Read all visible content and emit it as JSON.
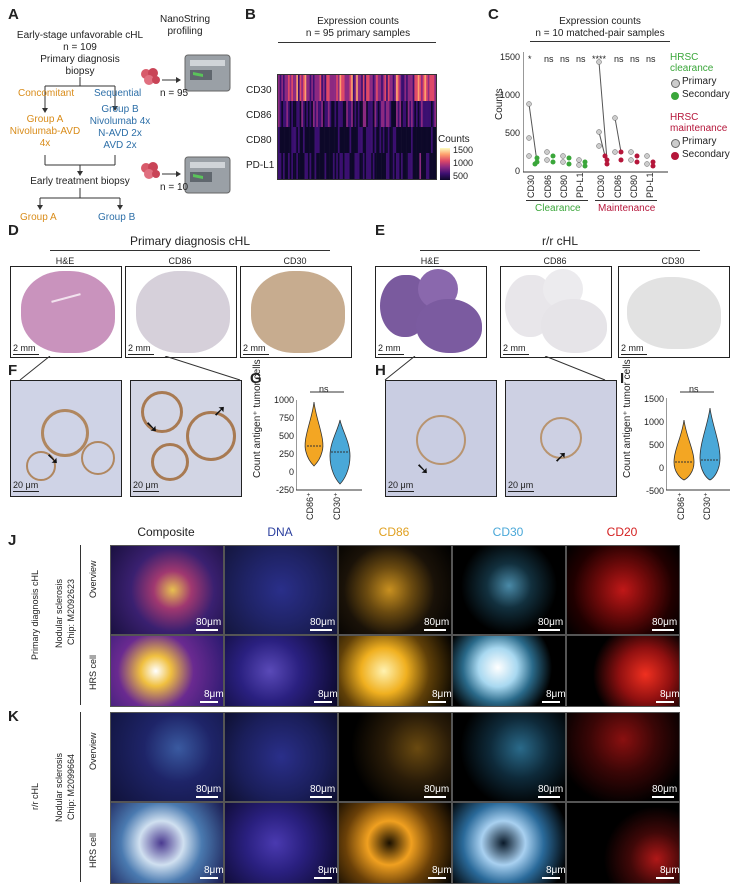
{
  "panel_letters": {
    "a": "A",
    "b": "B",
    "c": "C",
    "d": "D",
    "e": "E",
    "f": "F",
    "g": "G",
    "h": "H",
    "i": "I",
    "j": "J",
    "k": "K"
  },
  "panelA": {
    "nanostring": "NanoString",
    "profiling": "profiling",
    "cohort_title": "Early-stage unfavorable cHL",
    "cohort_n": "n = 109",
    "biopsy_line1": "Primary diagnosis",
    "biopsy_line2": "biopsy",
    "n95": "n = 95",
    "concomitant": "Concomitant",
    "sequential": "Sequential",
    "groupA_title": "Group A",
    "groupA_line1": "Nivolumab-AVD",
    "groupA_line2": "4x",
    "groupB_title": "Group B",
    "groupB_line1": "Nivolumab 4x",
    "groupB_line2": "N-AVD 2x",
    "groupB_line3": "AVD 2x",
    "early_biopsy": "Early treatment biopsy",
    "n10": "n = 10",
    "bottom_groupA": "Group A",
    "bottom_groupB": "Group B",
    "colors": {
      "groupA": "#d98c1a",
      "groupB": "#2d6fa8"
    }
  },
  "panelB": {
    "title1": "Expression counts",
    "title2": "n = 95 primary samples",
    "rows": [
      "CD30",
      "CD86",
      "CD80",
      "PD-L1"
    ],
    "legend_title": "Counts",
    "legend_ticks": [
      "1500",
      "1000",
      "500"
    ],
    "colormap": [
      "#0d0829",
      "#3b0f70",
      "#8c2981",
      "#de4968",
      "#fe9f6d",
      "#fcfdbf"
    ]
  },
  "panelC": {
    "title1": "Expression counts",
    "title2": "n = 10 matched-pair samples",
    "ylabel": "Counts",
    "yticks": [
      "1500",
      "1000",
      "500",
      "0"
    ],
    "xlabels": [
      "CD30",
      "CD86",
      "CD80",
      "PD-L1",
      "CD30",
      "CD86",
      "CD80",
      "PD-L1"
    ],
    "sig": [
      "*",
      "ns",
      "ns",
      "ns",
      "****",
      "ns",
      "ns",
      "ns"
    ],
    "group_clearance": "Clearance",
    "group_maintenance": "Maintenance",
    "legend": {
      "clear_title1": "HRSC",
      "clear_title2": "clearance",
      "primary": "Primary",
      "secondary": "Secondary",
      "maint_title1": "HRSC",
      "maint_title2": "maintenance"
    },
    "colors": {
      "clearance": "#3aa63a",
      "maintenance": "#b5163a",
      "primary": "#bbbbbb"
    }
  },
  "panelD": {
    "title": "Primary diagnosis cHL",
    "cols": [
      "H&E",
      "CD86",
      "CD30"
    ],
    "scale": "2 mm"
  },
  "panelE": {
    "title": "r/r cHL",
    "cols": [
      "H&E",
      "CD86",
      "CD30"
    ],
    "scale": "2 mm"
  },
  "panelF": {
    "scale": "20 μm"
  },
  "panelG": {
    "ylabel": "Count antigen⁺ tumor cells",
    "yticks": [
      "1000",
      "750",
      "500",
      "250",
      "0",
      "-250"
    ],
    "xlabels": [
      "CD86⁺",
      "CD30⁺"
    ],
    "sig": "ns"
  },
  "panelH": {
    "scale": "20 μm"
  },
  "panelI": {
    "ylabel": "Count antigen⁺ tumor cells",
    "yticks": [
      "1500",
      "1000",
      "500",
      "0",
      "-500"
    ],
    "xlabels": [
      "CD86⁺",
      "CD30⁺"
    ],
    "sig": "ns"
  },
  "panelJ": {
    "channels": [
      "Composite",
      "DNA",
      "CD86",
      "CD30",
      "CD20"
    ],
    "channel_colors": [
      "#222222",
      "#2b3f9e",
      "#e0a020",
      "#4aa8d8",
      "#d42020"
    ],
    "side1": "Primary diagnosis cHL",
    "side2": "Nodular sclerosis",
    "side3": "Chip: M2092623",
    "row1": "Overview",
    "row2": "HRS cell",
    "scale_overview": "80μm",
    "scale_cell": "8μm"
  },
  "panelK": {
    "side1": "r/r cHL",
    "side2": "Nodular sclerosis",
    "side3": "Chip: M2099664",
    "row1": "Overview",
    "row2": "HRS cell",
    "scale_overview": "80μm",
    "scale_cell": "8μm"
  }
}
